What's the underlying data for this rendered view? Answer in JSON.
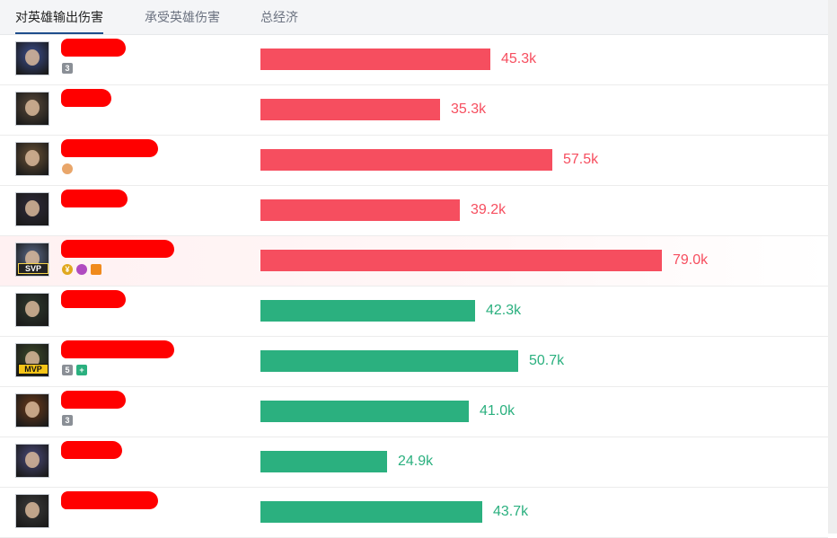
{
  "tabs": [
    {
      "label": "对英雄输出伤害",
      "active": true
    },
    {
      "label": "承受英雄伤害",
      "active": false
    },
    {
      "label": "总经济",
      "active": false
    }
  ],
  "max_value": 79.0,
  "colors": {
    "team_red": "#f64e5f",
    "team_green": "#2bb07f"
  },
  "rows": [
    {
      "name": "",
      "team": "red",
      "value": 45.3,
      "label": "45.3k",
      "badge": "",
      "icons": [
        "multikill-3-icon"
      ],
      "icon_text": [
        "3"
      ],
      "avatar_color": "#3b4e8f",
      "redact_w": 72
    },
    {
      "name": "",
      "team": "red",
      "value": 35.3,
      "label": "35.3k",
      "badge": "",
      "icons": [],
      "icon_text": [],
      "avatar_color": "#5a4a3a",
      "redact_w": 56
    },
    {
      "name": "",
      "team": "red",
      "value": 57.5,
      "label": "57.5k",
      "badge": "",
      "icons": [
        "fist-icon"
      ],
      "icon_text": [
        ""
      ],
      "avatar_color": "#6a5236",
      "redact_w": 108
    },
    {
      "name": "",
      "team": "red",
      "value": 39.2,
      "label": "39.2k",
      "badge": "",
      "icons": [],
      "icon_text": [],
      "avatar_color": "#2e2a3a",
      "redact_w": 74
    },
    {
      "name": "",
      "team": "red",
      "value": 79.0,
      "label": "79.0k",
      "badge": "SVP",
      "icons": [
        "gold-coin-icon",
        "gem-icon",
        "fire-icon"
      ],
      "icon_text": [
        "¥",
        "",
        ""
      ],
      "avatar_color": "#5b6b8a",
      "redact_w": 126
    },
    {
      "name": "",
      "team": "green",
      "value": 42.3,
      "label": "42.3k",
      "badge": "",
      "icons": [],
      "icon_text": [],
      "avatar_color": "#2e3a2e",
      "redact_w": 72
    },
    {
      "name": "",
      "team": "green",
      "value": 50.7,
      "label": "50.7k",
      "badge": "MVP",
      "icons": [
        "multikill-5-icon",
        "shield-plus-icon"
      ],
      "icon_text": [
        "5",
        "+"
      ],
      "avatar_color": "#3c4a2a",
      "redact_w": 126
    },
    {
      "name": "",
      "team": "green",
      "value": 41.0,
      "label": "41.0k",
      "badge": "",
      "icons": [
        "multikill-3-icon"
      ],
      "icon_text": [
        "3"
      ],
      "avatar_color": "#6a3a1a",
      "redact_w": 72
    },
    {
      "name": "",
      "team": "green",
      "value": 24.9,
      "label": "24.9k",
      "badge": "",
      "icons": [],
      "icon_text": [],
      "avatar_color": "#4a4a7a",
      "redact_w": 68
    },
    {
      "name": "",
      "team": "green",
      "value": 43.7,
      "label": "43.7k",
      "badge": "",
      "icons": [],
      "icon_text": [],
      "avatar_color": "#3a3a3a",
      "redact_w": 108
    }
  ]
}
